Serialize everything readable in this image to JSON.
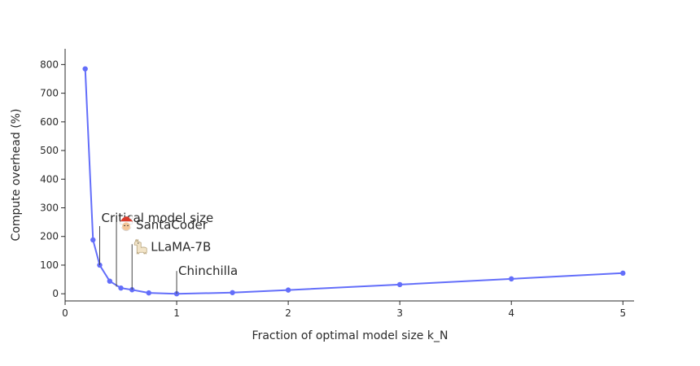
{
  "chart_data": {
    "type": "line",
    "xlabel": "Fraction of optimal model size k_N",
    "ylabel": "Compute overhead (%)",
    "xlim": [
      0,
      5.1
    ],
    "ylim": [
      -25,
      855
    ],
    "xticks": [
      0,
      1,
      2,
      3,
      4,
      5
    ],
    "yticks": [
      0,
      100,
      200,
      300,
      400,
      500,
      600,
      700,
      800
    ],
    "grid": false,
    "series_color": "#636efa",
    "series": [
      {
        "x": [
          0.18,
          0.25,
          0.31,
          0.4,
          0.5,
          0.6,
          0.75,
          1,
          1.5,
          2,
          3,
          4,
          5
        ],
        "y": [
          785,
          188,
          100,
          44,
          20,
          14,
          3,
          0,
          4,
          13,
          32,
          52,
          72
        ]
      }
    ],
    "annotations": [
      {
        "label": "Critical model size",
        "x": 0.31,
        "y": 100,
        "color": "#ff0000",
        "icon": ""
      },
      {
        "label": "SantaCoder",
        "x": 0.46,
        "y": 25,
        "color": "#2a2a2a",
        "icon": "santa-face-icon"
      },
      {
        "label": "LLaMA-7B",
        "x": 0.6,
        "y": 14,
        "color": "#2a2a2a",
        "icon": "llama-icon"
      },
      {
        "label": "Chinchilla",
        "x": 1,
        "y": 0,
        "color": "#2a2a2a",
        "icon": ""
      }
    ]
  }
}
